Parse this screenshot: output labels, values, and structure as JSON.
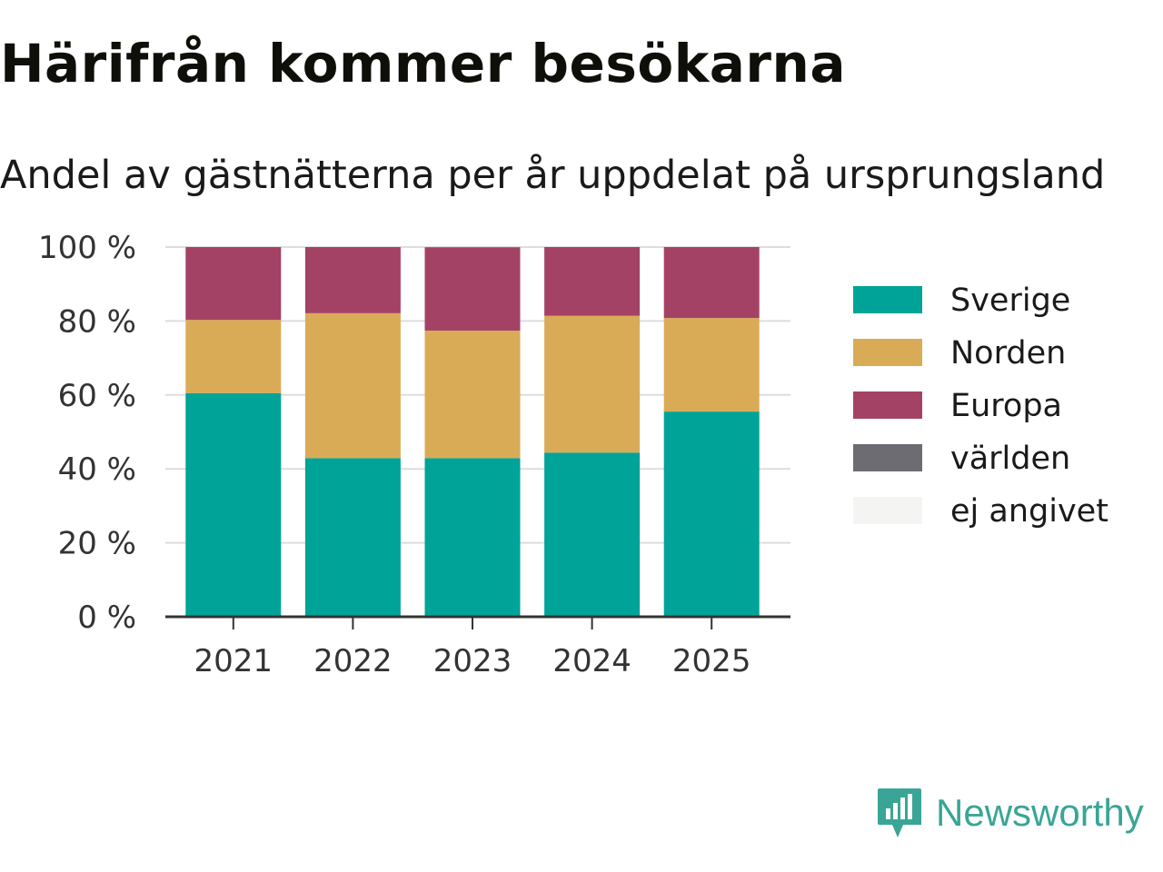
{
  "chart_data": {
    "type": "bar",
    "stacked": true,
    "title": "Härifrån kommer besökarna",
    "subtitle": "Andel av gästnätterna per år uppdelat på ursprungsland",
    "categories": [
      "2021",
      "2022",
      "2023",
      "2024",
      "2025"
    ],
    "series": [
      {
        "name": "Sverige",
        "color": "#00a398",
        "values": [
          60.5,
          42.9,
          42.9,
          44.4,
          55.5
        ]
      },
      {
        "name": "Norden",
        "color": "#daab57",
        "values": [
          19.8,
          39.2,
          34.5,
          37.0,
          25.3
        ]
      },
      {
        "name": "Europa",
        "color": "#a44266",
        "values": [
          19.7,
          17.9,
          22.4,
          18.6,
          19.2
        ]
      },
      {
        "name": "världen",
        "color": "#6d6c73",
        "values": [
          0,
          0,
          0.2,
          0,
          0
        ]
      },
      {
        "name": "ej angivet",
        "color": "#f4f4f2",
        "values": [
          0,
          0,
          0,
          0,
          0
        ]
      }
    ],
    "ylim": [
      0,
      100
    ],
    "yticks": [
      "0 %",
      "20 %",
      "40 %",
      "60 %",
      "80 %",
      "100 %"
    ],
    "ytick_values": [
      0,
      20,
      40,
      60,
      80,
      100
    ],
    "grid": true,
    "legend_position": "right",
    "xlabel": "",
    "ylabel": ""
  },
  "brand": {
    "name": "Newsworthy",
    "icon": "newsworthy-logo-icon"
  }
}
